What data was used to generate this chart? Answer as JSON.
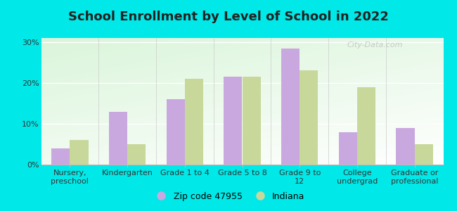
{
  "title": "School Enrollment by Level of School in 2022",
  "categories": [
    "Nursery,\npreschool",
    "Kindergarten",
    "Grade 1 to 4",
    "Grade 5 to 8",
    "Grade 9 to\n12",
    "College\nundergrad",
    "Graduate or\nprofessional"
  ],
  "zip_values": [
    4.0,
    13.0,
    16.0,
    21.5,
    28.5,
    8.0,
    9.0
  ],
  "indiana_values": [
    6.0,
    5.0,
    21.0,
    21.5,
    23.0,
    19.0,
    5.0
  ],
  "zip_color": "#c9a8e0",
  "indiana_color": "#c8d89a",
  "background_color": "#00e8e8",
  "plot_bg_colors": [
    "#d8edd0",
    "#e8f5e0",
    "#f5fff5",
    "#ffffff"
  ],
  "ylim": [
    0,
    31
  ],
  "yticks": [
    0,
    10,
    20,
    30
  ],
  "ytick_labels": [
    "0%",
    "10%",
    "20%",
    "30%"
  ],
  "legend_zip_label": "Zip code 47955",
  "legend_indiana_label": "Indiana",
  "watermark": "City-Data.com",
  "bar_width": 0.32,
  "title_fontsize": 13,
  "tick_fontsize": 8,
  "legend_fontsize": 9
}
